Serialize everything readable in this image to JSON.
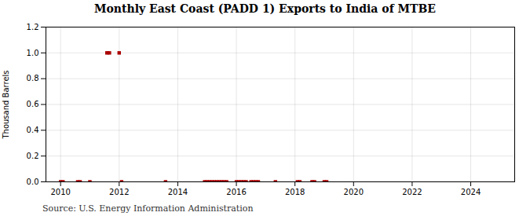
{
  "chart_data": {
    "type": "scatter",
    "title": "Monthly East Coast (PADD 1) Exports to India of MTBE",
    "ylabel": "Thousand Barrels",
    "source": "Source: U.S. Energy Information Administration",
    "x": [
      2010.0,
      2010.083,
      2010.583,
      2010.667,
      2011.0,
      2011.583,
      2011.667,
      2012.0,
      2012.083,
      2013.583,
      2014.917,
      2015.0,
      2015.083,
      2015.167,
      2015.25,
      2015.333,
      2015.417,
      2015.5,
      2015.583,
      2015.667,
      2016.0,
      2016.083,
      2016.167,
      2016.25,
      2016.333,
      2016.5,
      2016.583,
      2016.667,
      2016.75,
      2017.333,
      2018.083,
      2018.167,
      2018.583,
      2018.667,
      2019.0,
      2019.083
    ],
    "values": [
      0.0,
      0.0,
      0.0,
      0.0,
      0.0,
      1.0,
      1.0,
      1.0,
      0.0,
      0.0,
      0.0,
      0.0,
      0.0,
      0.0,
      0.0,
      0.0,
      0.0,
      0.0,
      0.0,
      0.0,
      0.0,
      0.0,
      0.0,
      0.0,
      0.0,
      0.0,
      0.0,
      0.0,
      0.0,
      0.0,
      0.0,
      0.0,
      0.0,
      0.0,
      0.0,
      0.0
    ],
    "color": "#aa0000",
    "marker": "square",
    "xlim": [
      2009.5,
      2025.5
    ],
    "xticks": [
      2010,
      2012,
      2014,
      2016,
      2018,
      2020,
      2022,
      2024
    ],
    "ylim": [
      0.0,
      1.2
    ],
    "yticks": [
      {
        "value": 0.0,
        "label": "0.0"
      },
      0.2,
      0.4,
      0.6,
      0.8,
      {
        "value": 1.0,
        "label": "1.0"
      },
      1.2
    ],
    "grid": true
  }
}
